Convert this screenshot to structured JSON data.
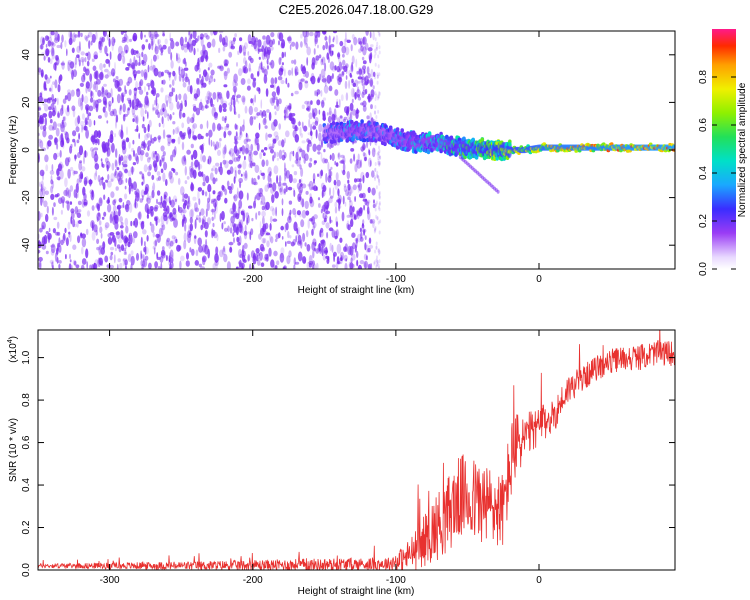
{
  "title": "C2E5.2026.047.18.00.G29",
  "colors": {
    "noise": "#7a2cf0",
    "signal_line": "#e8312f",
    "axis": "#000000",
    "background": "#ffffff"
  },
  "chart_data": [
    {
      "type": "heatmap",
      "name": "spectrogram",
      "xlabel": "Height of straight line (km)",
      "ylabel": "Frequency (Hz)",
      "xlim": [
        -350,
        95
      ],
      "ylim": [
        -50,
        50
      ],
      "xticks": [
        -300,
        -200,
        -100,
        0
      ],
      "xtick_labels": [
        "-300",
        "-200",
        "-100",
        "0"
      ],
      "yticks": [
        -40,
        -20,
        0,
        20,
        40
      ],
      "ytick_labels": [
        "-40",
        "-20",
        "0",
        "20",
        "40"
      ],
      "noise_region_x": [
        -350,
        -115
      ],
      "ridge": {
        "x": [
          -150,
          -130,
          -115,
          -100,
          -85,
          -70,
          -55,
          -40,
          -25,
          -10,
          0,
          20,
          40,
          60,
          80,
          95
        ],
        "freq": [
          7,
          8,
          8,
          5,
          3,
          3,
          1,
          0.5,
          0,
          0,
          1,
          1,
          1,
          1,
          1,
          1
        ],
        "amplitude": [
          0.3,
          0.4,
          0.35,
          0.4,
          0.45,
          0.5,
          0.6,
          0.7,
          0.75,
          0.8,
          0.85,
          0.9,
          0.9,
          0.95,
          0.97,
          0.98
        ]
      },
      "colorbar": {
        "label": "Normalized spectral amplitude",
        "range": [
          0,
          1
        ],
        "ticks": [
          0.0,
          0.2,
          0.4,
          0.6,
          0.8
        ],
        "tick_labels": [
          "0.0",
          "0.2",
          "0.4",
          "0.6",
          "0.8"
        ]
      }
    },
    {
      "type": "line",
      "name": "snr",
      "xlabel": "Height of straight line (km)",
      "ylabel": "SNR (10 * v/v)",
      "scale_label": "(x10",
      "scale_exponent": "4",
      "scale_close": ")",
      "xlim": [
        -350,
        95
      ],
      "ylim": [
        0,
        1.13
      ],
      "xticks": [
        -300,
        -200,
        -100,
        0
      ],
      "xtick_labels": [
        "-300",
        "-200",
        "-100",
        "0"
      ],
      "yticks": [
        0.0,
        0.2,
        0.4,
        0.6,
        0.8,
        1.0
      ],
      "ytick_labels": [
        "0.0",
        "0.2",
        "0.4",
        "0.6",
        "0.8",
        "1.0"
      ],
      "series": [
        {
          "name": "SNR",
          "x": [
            -350,
            -250,
            -150,
            -105,
            -95,
            -85,
            -75,
            -65,
            -55,
            -45,
            -35,
            -25,
            -20,
            -15,
            -10,
            -5,
            0,
            10,
            20,
            30,
            40,
            50,
            60,
            70,
            80,
            95
          ],
          "y": [
            0.02,
            0.02,
            0.025,
            0.03,
            0.05,
            0.1,
            0.18,
            0.25,
            0.35,
            0.33,
            0.3,
            0.28,
            0.5,
            0.6,
            0.62,
            0.65,
            0.68,
            0.72,
            0.85,
            0.9,
            0.95,
            0.98,
            1.0,
            1.0,
            1.02,
            1.02
          ],
          "envelope": [
            0.01,
            0.02,
            0.03,
            0.03,
            0.06,
            0.1,
            0.15,
            0.18,
            0.2,
            0.2,
            0.2,
            0.18,
            0.2,
            0.15,
            0.12,
            0.1,
            0.09,
            0.08,
            0.07,
            0.06,
            0.06,
            0.06,
            0.06,
            0.06,
            0.06,
            0.06
          ]
        }
      ]
    }
  ]
}
